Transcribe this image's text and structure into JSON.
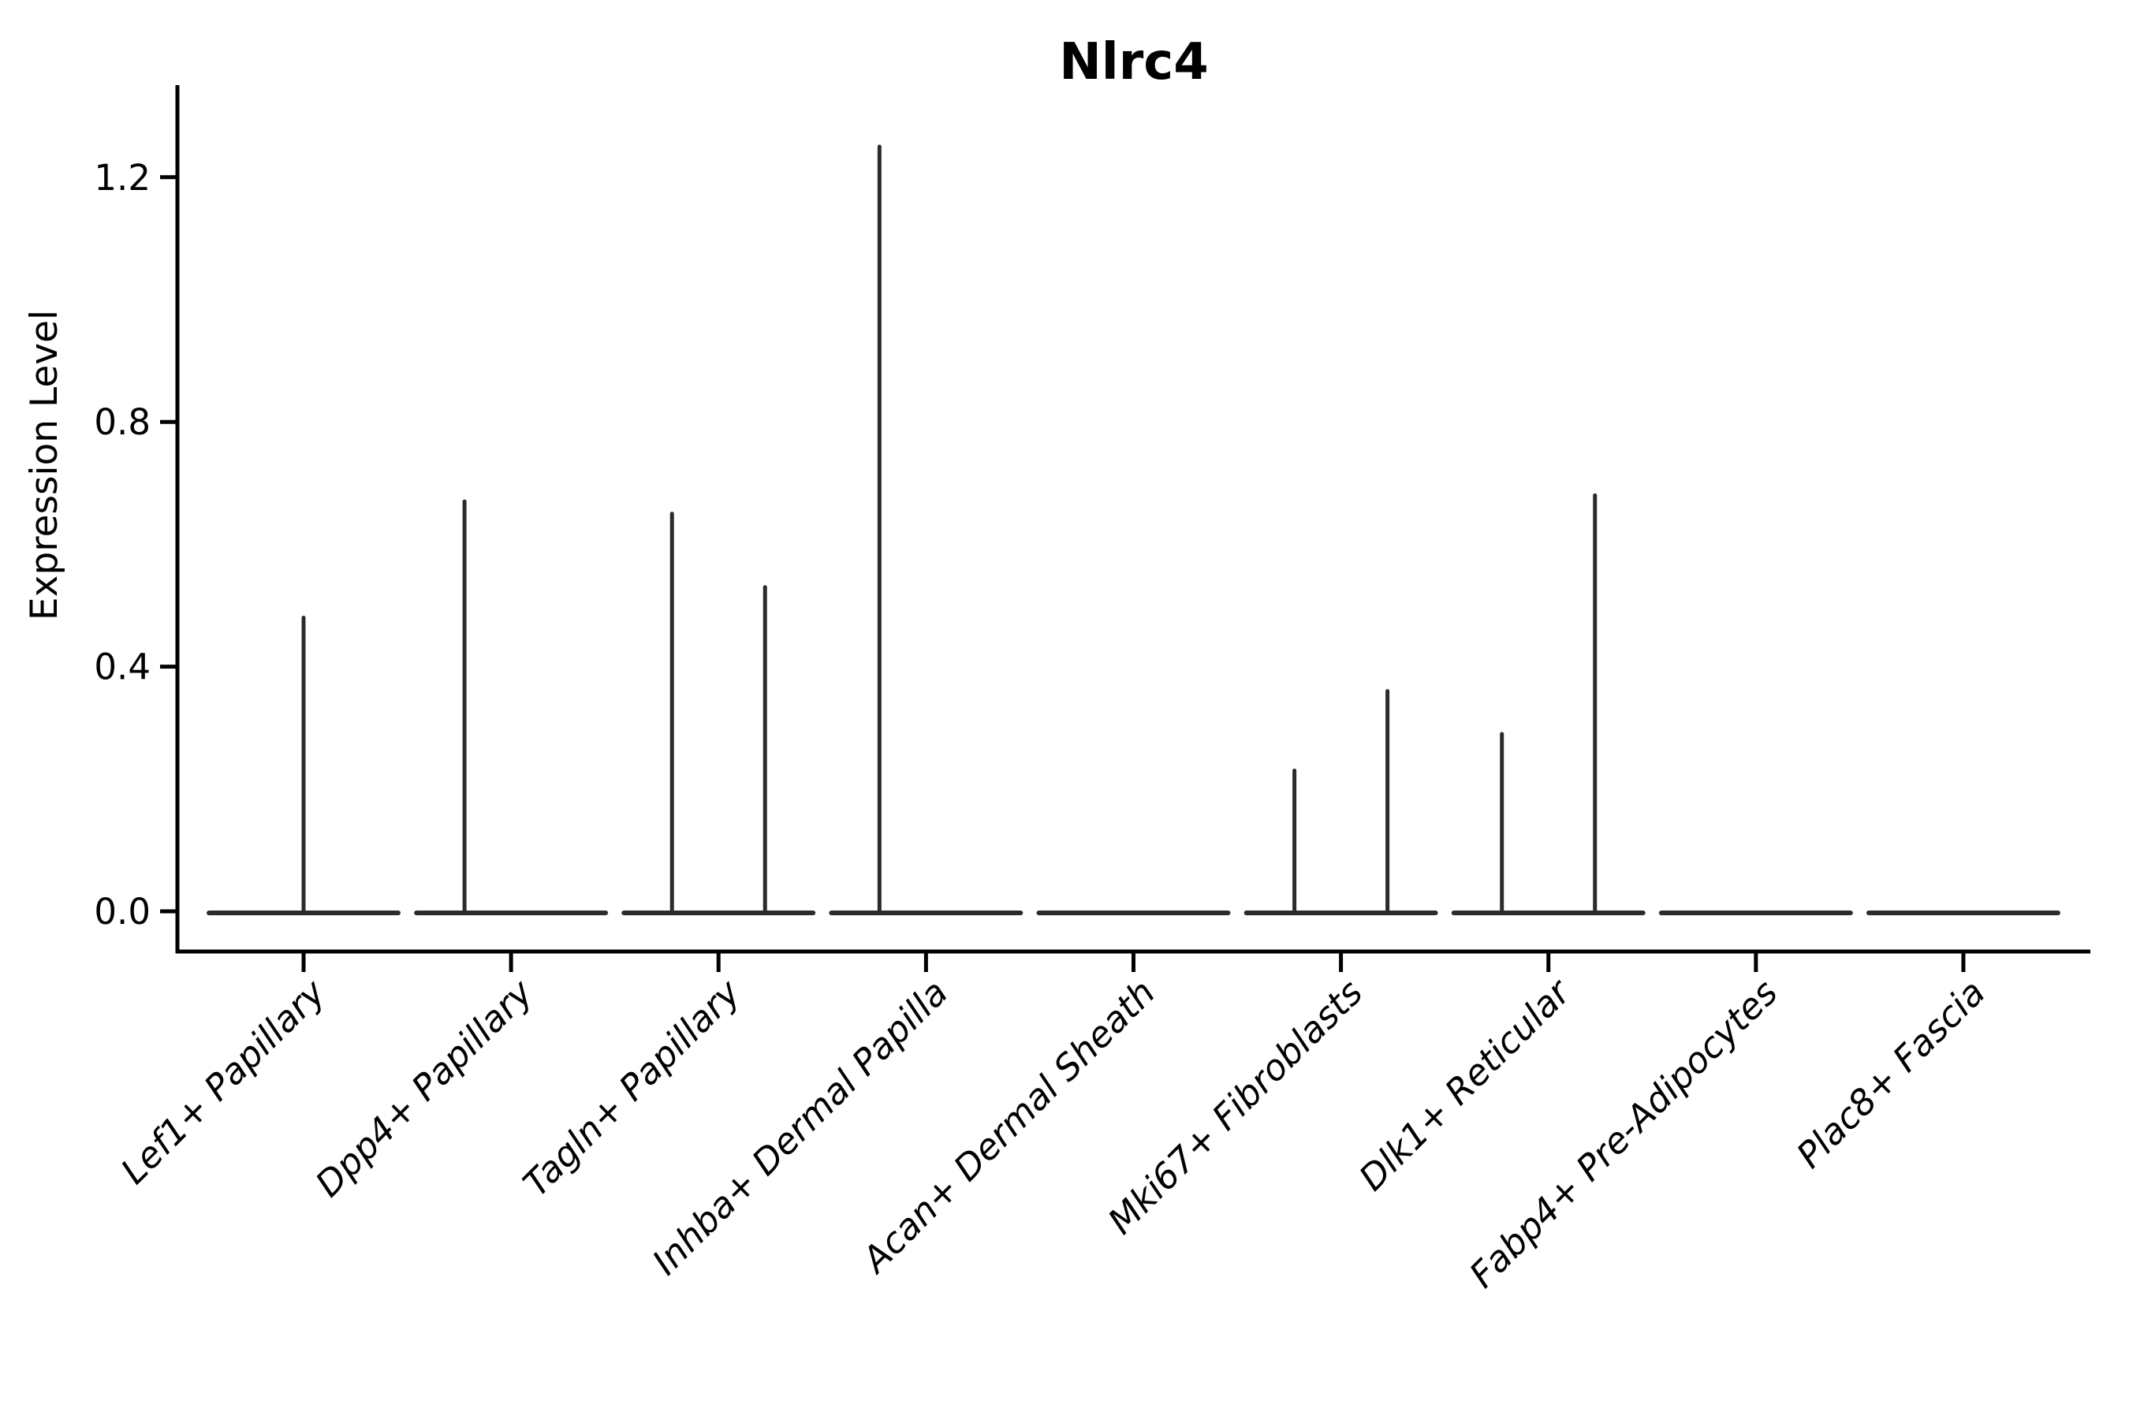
{
  "chart_data": {
    "type": "violin",
    "title": "Nlrc4",
    "ylabel": "Expression Level",
    "xlabel": "",
    "ylim": [
      0.0,
      1.3
    ],
    "yticks": [
      "0.0",
      "0.4",
      "0.8",
      "1.2"
    ],
    "ytick_values": [
      0.0,
      0.4,
      0.8,
      1.2
    ],
    "grid": false,
    "legend": null,
    "axis_color": "#000000",
    "violin_color": "#2b2b2b",
    "background_color": "#ffffff",
    "x_label_rotation_deg": 45,
    "categories": [
      {
        "label": "Lef1+ Papillary",
        "baseline_value": 0.0,
        "spikes": [
          {
            "position": "center",
            "offset": 0,
            "value": 0.48
          }
        ]
      },
      {
        "label": "Dpp4+ Papillary",
        "baseline_value": 0.0,
        "spikes": [
          {
            "position": "left",
            "offset": -59,
            "value": 0.67
          }
        ]
      },
      {
        "label": "Tagln+ Papillary",
        "baseline_value": 0.0,
        "spikes": [
          {
            "position": "left",
            "offset": -59,
            "value": 0.65
          },
          {
            "position": "right",
            "offset": 59,
            "value": 0.53
          }
        ]
      },
      {
        "label": "Inhba+ Dermal Papilla",
        "baseline_value": 0.0,
        "spikes": [
          {
            "position": "left",
            "offset": -59,
            "value": 1.25
          }
        ]
      },
      {
        "label": "Acan+ Dermal Sheath",
        "baseline_value": 0.0,
        "spikes": []
      },
      {
        "label": "Mki67+ Fibroblasts",
        "baseline_value": 0.0,
        "spikes": [
          {
            "position": "left",
            "offset": -59,
            "value": 0.23
          },
          {
            "position": "right",
            "offset": 59,
            "value": 0.36
          }
        ]
      },
      {
        "label": "Dlk1+ Reticular",
        "baseline_value": 0.0,
        "spikes": [
          {
            "position": "left",
            "offset": -59,
            "value": 0.29
          },
          {
            "position": "right",
            "offset": 59,
            "value": 0.68
          }
        ]
      },
      {
        "label": "Fabp4+ Pre-Adipocytes",
        "baseline_value": 0.0,
        "spikes": []
      },
      {
        "label": "Plac8+ Fascia",
        "baseline_value": 0.0,
        "spikes": []
      }
    ]
  }
}
